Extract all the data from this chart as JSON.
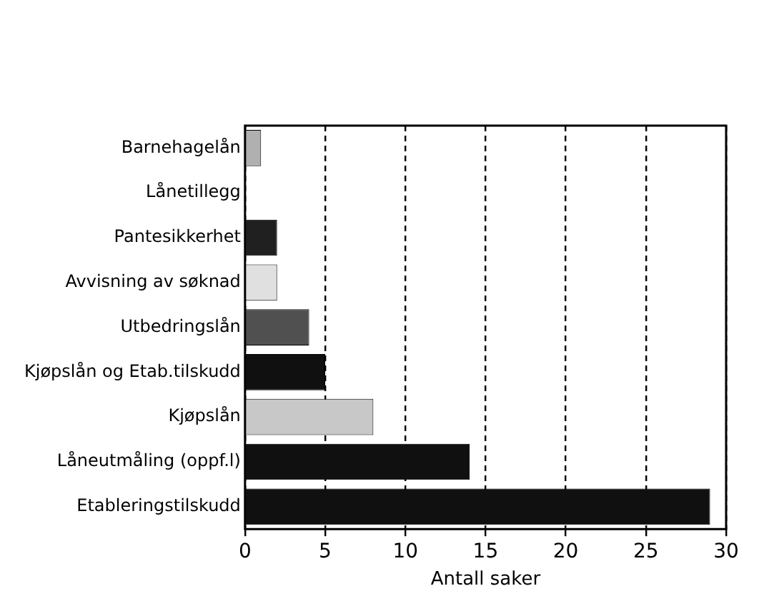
{
  "chart_data": {
    "type": "bar",
    "orientation": "horizontal",
    "xlabel": "Antall saker",
    "categories": [
      "Barnehagelån",
      "Lånetillegg",
      "Pantesikkerhet",
      "Avvisning av søknad",
      "Utbedringslån",
      "Kjøpslån og Etab.tilskudd",
      "Kjøpslån",
      "Låneutmåling (oppf.l)",
      "Etableringstilskudd"
    ],
    "values": [
      1,
      0,
      2,
      2,
      4,
      5,
      8,
      14,
      29
    ],
    "colors": [
      "#b0b0b0",
      "#d0d0d0",
      "#202020",
      "#e0e0e0",
      "#505050",
      "#101010",
      "#c8c8c8",
      "#101010",
      "#101010"
    ],
    "xlim": [
      0,
      30
    ],
    "xticks": [
      0,
      5,
      10,
      15,
      20,
      25,
      30
    ],
    "grid": "x",
    "legend": false
  }
}
